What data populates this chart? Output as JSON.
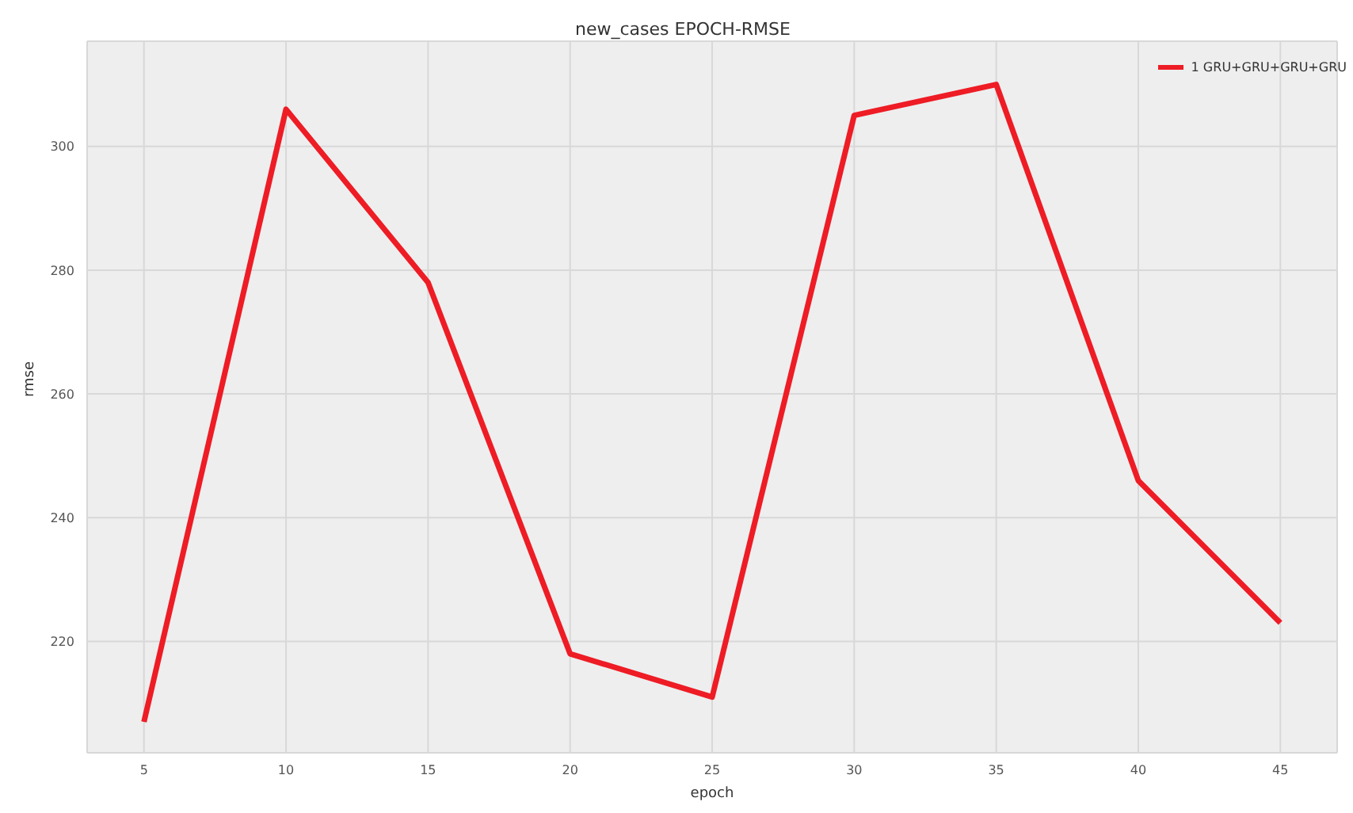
{
  "chart_data": {
    "type": "line",
    "title": "new_cases EPOCH-RMSE",
    "xlabel": "epoch",
    "ylabel": "rmse",
    "x": [
      5,
      10,
      15,
      20,
      25,
      30,
      35,
      40,
      45
    ],
    "series": [
      {
        "name": "1 GRU+GRU+GRU+GRU",
        "color": "#ee1c25",
        "values": [
          207,
          306,
          278,
          218,
          211,
          305,
          310,
          246,
          223
        ]
      }
    ],
    "xlim": [
      3,
      47
    ],
    "xticks": [
      5,
      10,
      15,
      20,
      25,
      30,
      35,
      40,
      45
    ],
    "ylim": [
      202,
      317
    ],
    "yticks": [
      220,
      240,
      260,
      280,
      300
    ],
    "grid": true,
    "legend": "top right",
    "marker": "none",
    "line_style": "solid"
  }
}
